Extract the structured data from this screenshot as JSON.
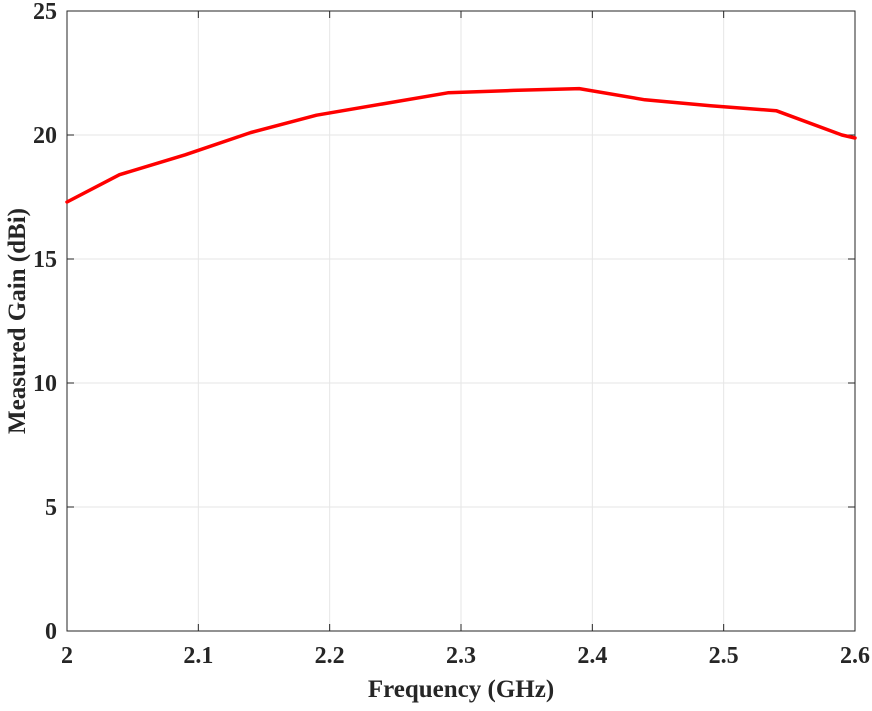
{
  "chart_data": {
    "type": "line",
    "title": "",
    "xlabel": "Frequency (GHz)",
    "ylabel": "Measured Gain (dBi)",
    "xlim": [
      2.0,
      2.6
    ],
    "ylim": [
      0,
      25
    ],
    "xticks": [
      2.0,
      2.1,
      2.2,
      2.3,
      2.4,
      2.5,
      2.6
    ],
    "xtick_labels": [
      "2",
      "2.1",
      "2.2",
      "2.3",
      "2.4",
      "2.5",
      "2.6"
    ],
    "yticks": [
      0,
      5,
      10,
      15,
      20,
      25
    ],
    "ytick_labels": [
      "0",
      "5",
      "10",
      "15",
      "20",
      "25"
    ],
    "grid": true,
    "legend": "none",
    "series": [
      {
        "color": "#ff0000",
        "x": [
          2.0,
          2.04,
          2.09,
          2.14,
          2.19,
          2.24,
          2.29,
          2.34,
          2.39,
          2.44,
          2.49,
          2.54,
          2.59,
          2.6
        ],
        "y": [
          17.3,
          18.4,
          19.2,
          20.1,
          20.8,
          21.25,
          21.7,
          21.8,
          21.87,
          21.42,
          21.18,
          20.98,
          20.0,
          19.88
        ]
      }
    ]
  }
}
